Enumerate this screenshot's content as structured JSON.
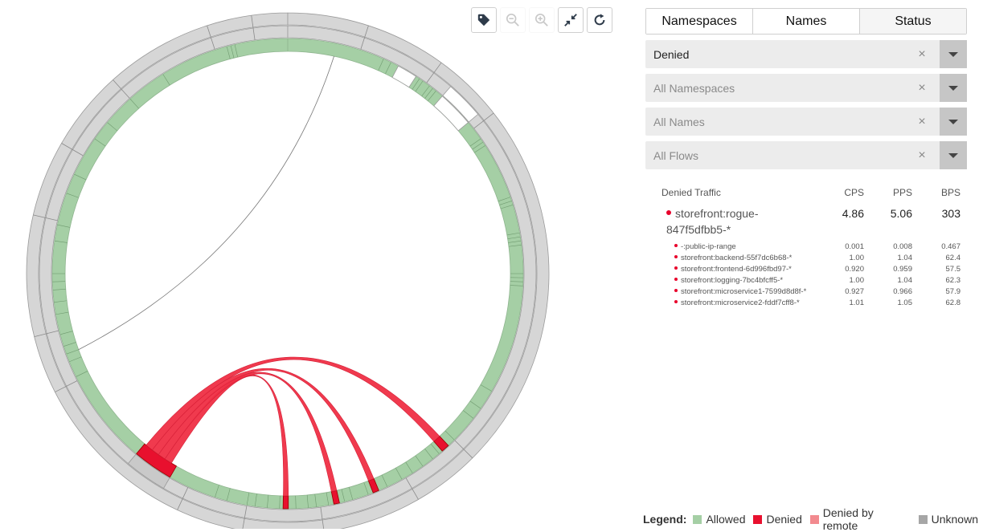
{
  "toolbar": {
    "buttons": [
      {
        "name": "tag-icon",
        "disabled": false
      },
      {
        "name": "zoom-out-icon",
        "disabled": true
      },
      {
        "name": "zoom-in-icon",
        "disabled": true
      },
      {
        "name": "collapse-icon",
        "disabled": false
      },
      {
        "name": "refresh-icon",
        "disabled": false
      }
    ]
  },
  "tabs": [
    "Namespaces",
    "Names",
    "Status"
  ],
  "filters": {
    "status": {
      "value": "Denied",
      "clear": "×"
    },
    "namespaces": {
      "placeholder": "All Namespaces",
      "clear": "×"
    },
    "names": {
      "placeholder": "All Names",
      "clear": "×"
    },
    "flows": {
      "placeholder": "All Flows",
      "clear": "×"
    }
  },
  "stats": {
    "title": "Denied Traffic",
    "columns": [
      "CPS",
      "PPS",
      "BPS"
    ],
    "main": {
      "name": "storefront:rogue-847f5dfbb5-*",
      "cps": "4.86",
      "pps": "5.06",
      "bps": "303"
    },
    "rows": [
      {
        "name": "-:public-ip-range",
        "cps": "0.001",
        "pps": "0.008",
        "bps": "0.467"
      },
      {
        "name": "storefront:backend-55f7dc6b68-*",
        "cps": "1.00",
        "pps": "1.04",
        "bps": "62.4"
      },
      {
        "name": "storefront:frontend-6d996fbd97-*",
        "cps": "0.920",
        "pps": "0.959",
        "bps": "57.5"
      },
      {
        "name": "storefront:logging-7bc4bfcff5-*",
        "cps": "1.00",
        "pps": "1.04",
        "bps": "62.3"
      },
      {
        "name": "storefront:microservice1-7599d8d8f-*",
        "cps": "0.927",
        "pps": "0.966",
        "bps": "57.9"
      },
      {
        "name": "storefront:microservice2-fddf7cff8-*",
        "cps": "1.01",
        "pps": "1.05",
        "bps": "62.8"
      }
    ]
  },
  "legend": {
    "title": "Legend:",
    "items": [
      {
        "label": "Allowed",
        "color": "#a5cfa5"
      },
      {
        "label": "Denied",
        "color": "#e8102e"
      },
      {
        "label": "Denied by remote",
        "color": "#f28a8f"
      },
      {
        "label": "Unknown",
        "color": "#a6a6a6"
      }
    ]
  },
  "colors": {
    "ring_outer": "#d6d6d6",
    "allowed": "#a5cfa5",
    "denied": "#e8102e",
    "chord": "#ef2f45"
  }
}
